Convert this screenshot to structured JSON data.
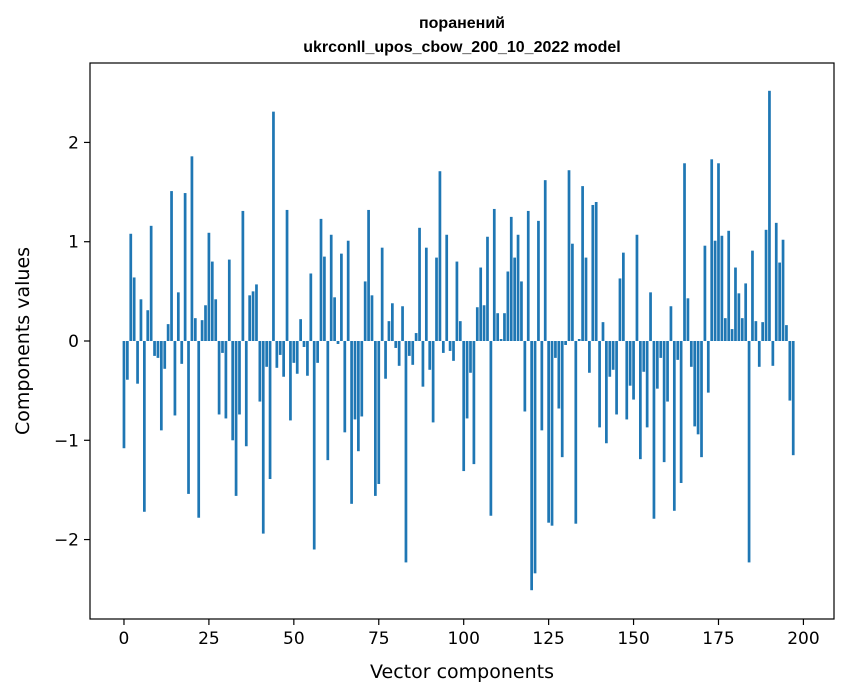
{
  "chart_data": {
    "type": "bar",
    "title_line1": "поранений",
    "title_line2": "ukrconll_upos_cbow_200_10_2022 model",
    "xlabel": "Vector components",
    "ylabel": "Components values",
    "xlim": [
      -10,
      209
    ],
    "ylim": [
      -2.8,
      2.8
    ],
    "xticks": [
      0,
      25,
      50,
      75,
      100,
      125,
      150,
      175,
      200
    ],
    "yticks": [
      -2,
      -1,
      0,
      1,
      2
    ],
    "ytick_labels": [
      "−2",
      "−1",
      "0",
      "1",
      "2"
    ],
    "bar_color": "#1f77b4",
    "values": [
      -1.08,
      -0.39,
      1.08,
      0.64,
      -0.43,
      0.42,
      -1.72,
      0.31,
      1.16,
      -0.15,
      -0.17,
      -0.9,
      -0.28,
      0.17,
      1.51,
      -0.75,
      0.49,
      -0.23,
      1.49,
      -1.54,
      1.86,
      0.23,
      -1.78,
      0.21,
      0.36,
      1.09,
      0.8,
      0.42,
      -0.74,
      -0.12,
      -0.78,
      0.82,
      -1.0,
      -1.56,
      -0.74,
      1.31,
      -1.06,
      0.46,
      0.5,
      0.57,
      -0.61,
      -1.94,
      -0.26,
      -1.39,
      2.31,
      -0.27,
      -0.14,
      -0.36,
      1.32,
      -0.8,
      -0.22,
      -0.33,
      0.22,
      -0.06,
      -0.35,
      0.68,
      -2.1,
      -0.22,
      1.23,
      0.85,
      -1.2,
      1.07,
      0.44,
      -0.03,
      0.88,
      -0.92,
      1.01,
      -1.64,
      -0.79,
      -1.11,
      -0.76,
      0.6,
      1.32,
      0.46,
      -1.56,
      -1.44,
      0.94,
      -0.38,
      0.2,
      0.38,
      -0.07,
      -0.25,
      0.35,
      -2.23,
      -0.15,
      -0.24,
      0.08,
      1.14,
      -0.46,
      0.94,
      -0.29,
      -0.82,
      0.84,
      1.71,
      -0.12,
      1.07,
      -0.1,
      -0.2,
      0.8,
      0.2,
      -1.31,
      -0.78,
      -0.32,
      -1.24,
      0.34,
      0.74,
      0.36,
      1.05,
      -1.76,
      1.33,
      0.28,
      0.02,
      0.28,
      0.7,
      1.25,
      0.84,
      1.07,
      0.6,
      -0.71,
      1.31,
      -2.51,
      -2.34,
      1.21,
      -0.9,
      1.62,
      -1.83,
      -1.86,
      -0.17,
      -0.68,
      -1.17,
      -0.04,
      1.72,
      0.98,
      -1.84,
      0.02,
      1.56,
      0.84,
      -0.32,
      1.37,
      1.4,
      -0.87,
      0.19,
      -1.03,
      -0.36,
      -0.29,
      -0.74,
      0.63,
      0.89,
      -0.79,
      -0.45,
      -0.59,
      1.07,
      -1.19,
      -0.31,
      -0.87,
      0.49,
      -1.79,
      -0.48,
      -0.17,
      -1.22,
      -0.61,
      0.35,
      -1.71,
      -0.19,
      -1.43,
      1.79,
      0.43,
      -0.26,
      -0.86,
      -0.94,
      -1.17,
      0.96,
      -0.52,
      1.83,
      1.01,
      1.79,
      1.06,
      0.23,
      1.11,
      0.12,
      0.74,
      0.48,
      0.23,
      0.58,
      -2.23,
      0.91,
      0.2,
      -0.26,
      0.19,
      1.12,
      2.52,
      -0.25,
      1.19,
      0.79,
      1.02,
      0.16,
      -0.6,
      -1.15
    ]
  }
}
